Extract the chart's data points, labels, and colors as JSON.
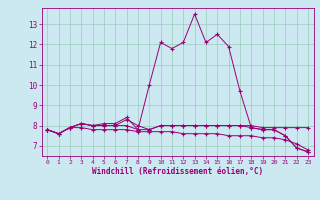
{
  "xlabel": "Windchill (Refroidissement éolien,°C)",
  "background_color": "#cce8f0",
  "grid_color": "#99ccbb",
  "line_color": "#990077",
  "x_values": [
    0,
    1,
    2,
    3,
    4,
    5,
    6,
    7,
    8,
    9,
    10,
    11,
    12,
    13,
    14,
    15,
    16,
    17,
    18,
    19,
    20,
    21,
    22,
    23
  ],
  "series": [
    [
      7.8,
      7.6,
      7.9,
      8.1,
      8.0,
      8.0,
      8.0,
      8.3,
      8.0,
      7.8,
      8.0,
      8.0,
      8.0,
      8.0,
      8.0,
      8.0,
      8.0,
      8.0,
      8.0,
      7.9,
      7.9,
      7.9,
      7.9,
      7.9
    ],
    [
      7.8,
      7.6,
      7.9,
      8.1,
      8.0,
      8.1,
      8.1,
      8.4,
      7.8,
      10.0,
      12.1,
      11.8,
      12.1,
      13.5,
      12.1,
      12.5,
      11.9,
      9.7,
      7.9,
      7.8,
      7.8,
      7.5,
      6.9,
      6.7
    ],
    [
      7.8,
      7.6,
      7.9,
      8.1,
      8.0,
      8.0,
      8.0,
      8.0,
      7.8,
      7.8,
      8.0,
      8.0,
      8.0,
      8.0,
      8.0,
      8.0,
      8.0,
      8.0,
      7.9,
      7.8,
      7.8,
      7.5,
      6.9,
      6.7
    ],
    [
      7.8,
      7.6,
      7.9,
      7.9,
      7.8,
      7.8,
      7.8,
      7.8,
      7.7,
      7.7,
      7.7,
      7.7,
      7.6,
      7.6,
      7.6,
      7.6,
      7.5,
      7.5,
      7.5,
      7.4,
      7.4,
      7.3,
      7.1,
      6.8
    ]
  ],
  "yticks": [
    7,
    8,
    9,
    10,
    11,
    12,
    13
  ],
  "xticks": [
    0,
    1,
    2,
    3,
    4,
    5,
    6,
    7,
    8,
    9,
    10,
    11,
    12,
    13,
    14,
    15,
    16,
    17,
    18,
    19,
    20,
    21,
    22,
    23
  ],
  "ylim": [
    6.5,
    13.8
  ],
  "xlim": [
    -0.5,
    23.5
  ]
}
